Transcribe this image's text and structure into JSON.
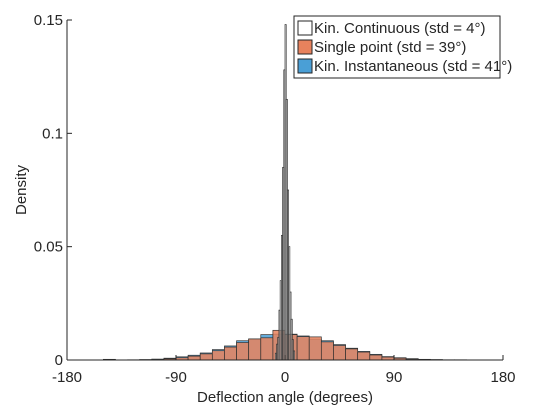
{
  "chart_data": {
    "type": "histogram",
    "title": "",
    "xlabel": "Deflection angle (degrees)",
    "ylabel": "Density",
    "xlim": [
      -180,
      180
    ],
    "ylim": [
      0,
      0.15
    ],
    "xticks": [
      -180,
      -90,
      0,
      90,
      180
    ],
    "xtick_labels": [
      "-180",
      "-90",
      "0",
      "90",
      "180"
    ],
    "yticks": [
      0,
      0.05,
      0.1,
      0.15
    ],
    "ytick_labels": [
      "0",
      "0.05",
      "0.1",
      "0.15"
    ],
    "grid": false,
    "legend_position": "top-right",
    "series": [
      {
        "name": "Kin. Instantaneous (std = 41°)",
        "color": "#4a9fd6",
        "bin_width": 10,
        "bins": [
          -150,
          -140,
          -130,
          -120,
          -110,
          -100,
          -90,
          -80,
          -70,
          -60,
          -50,
          -40,
          -30,
          -20,
          -10,
          0,
          10,
          20,
          30,
          40,
          50,
          60,
          70,
          80,
          90,
          100,
          110,
          120,
          130,
          140
        ],
        "values": [
          0.0003,
          0,
          0.0001,
          0.0002,
          0.0004,
          0.0008,
          0.0014,
          0.0021,
          0.0031,
          0.0046,
          0.0062,
          0.0085,
          0.0093,
          0.0112,
          0.0114,
          0.0114,
          0.0106,
          0.0092,
          0.0085,
          0.0068,
          0.0052,
          0.0038,
          0.0025,
          0.0015,
          0.001,
          0.0006,
          0.0003,
          0.0002,
          0.0001,
          0.0001
        ]
      },
      {
        "name": "Single point (std = 39°)",
        "color": "#e8825d",
        "bin_width": 10,
        "bins": [
          -150,
          -140,
          -130,
          -120,
          -110,
          -100,
          -90,
          -80,
          -70,
          -60,
          -50,
          -40,
          -30,
          -20,
          -10,
          0,
          10,
          20,
          30,
          40,
          50,
          60,
          70,
          80,
          90,
          100,
          110,
          120,
          130,
          140
        ],
        "values": [
          0.0001,
          0,
          0,
          0.0001,
          0.0002,
          0.0005,
          0.001,
          0.0017,
          0.0027,
          0.0041,
          0.0057,
          0.0077,
          0.0093,
          0.0098,
          0.0131,
          0.0112,
          0.0103,
          0.0102,
          0.008,
          0.0064,
          0.0049,
          0.0035,
          0.0022,
          0.0013,
          0.0008,
          0.0004,
          0.0002,
          0.0001,
          0,
          0
        ]
      },
      {
        "name": "Kin. Continuous (std = 4°)",
        "color": "#ffffff",
        "bin_width": 1,
        "bins": [
          -8,
          -7,
          -6,
          -5,
          -4,
          -3,
          -2,
          -1,
          0,
          1,
          2,
          3,
          4,
          5,
          6,
          7
        ],
        "values": [
          0.003,
          0.007,
          0.01,
          0.022,
          0.035,
          0.055,
          0.085,
          0.128,
          0.148,
          0.115,
          0.075,
          0.05,
          0.03,
          0.018,
          0.009,
          0.004
        ]
      }
    ]
  }
}
